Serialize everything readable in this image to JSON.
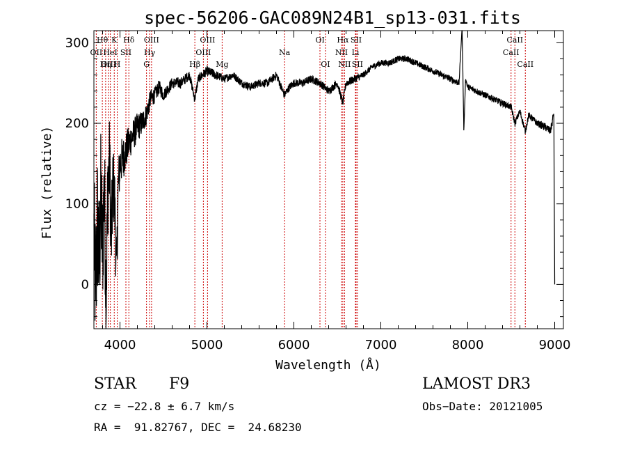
{
  "chart_data": {
    "type": "line",
    "title": "spec-56206-GAC089N24B1_sp13-031.fits",
    "xlabel": "Wavelength (Å)",
    "ylabel": "Flux (relative)",
    "xlim": [
      3700,
      9100
    ],
    "ylim": [
      -55,
      315
    ],
    "xticks": [
      4000,
      5000,
      6000,
      7000,
      8000,
      9000
    ],
    "yticks": [
      0,
      100,
      200,
      300
    ],
    "series": [
      {
        "name": "spectrum",
        "x": [
          3700,
          3720,
          3740,
          3760,
          3780,
          3800,
          3820,
          3840,
          3860,
          3880,
          3900,
          3920,
          3940,
          3960,
          3980,
          4000,
          4050,
          4100,
          4150,
          4200,
          4250,
          4300,
          4350,
          4400,
          4450,
          4500,
          4600,
          4700,
          4800,
          4860,
          4900,
          5000,
          5100,
          5200,
          5300,
          5400,
          5500,
          5600,
          5700,
          5800,
          5890,
          5950,
          6000,
          6100,
          6200,
          6300,
          6400,
          6500,
          6563,
          6600,
          6700,
          6800,
          6900,
          7000,
          7100,
          7200,
          7300,
          7400,
          7500,
          7600,
          7700,
          7800,
          7900,
          7935,
          7955,
          7975,
          8000,
          8100,
          8200,
          8300,
          8400,
          8500,
          8542,
          8600,
          8662,
          8700,
          8800,
          8900,
          8950,
          8970,
          8990,
          9000
        ],
        "y": [
          60,
          -10,
          80,
          20,
          110,
          40,
          130,
          -20,
          120,
          150,
          50,
          130,
          100,
          10,
          120,
          150,
          160,
          175,
          185,
          195,
          200,
          210,
          230,
          235,
          245,
          235,
          250,
          250,
          260,
          230,
          255,
          265,
          260,
          255,
          260,
          250,
          245,
          250,
          250,
          260,
          235,
          245,
          250,
          250,
          255,
          250,
          240,
          250,
          225,
          250,
          255,
          260,
          270,
          275,
          275,
          280,
          280,
          275,
          270,
          265,
          260,
          255,
          250,
          320,
          190,
          255,
          245,
          240,
          235,
          230,
          225,
          220,
          200,
          215,
          190,
          210,
          200,
          195,
          190,
          200,
          215,
          0
        ],
        "noise_amplitude": [
          90,
          90,
          90,
          90,
          85,
          80,
          75,
          70,
          65,
          60,
          55,
          50,
          45,
          40,
          35,
          30,
          25,
          22,
          20,
          18,
          16,
          14,
          12,
          10,
          9,
          8,
          7,
          7,
          6,
          6,
          6,
          6,
          6,
          5,
          5,
          5,
          5,
          5,
          5,
          5,
          5,
          5,
          5,
          5,
          5,
          5,
          5,
          5,
          5,
          5,
          5,
          4,
          4,
          4,
          4,
          4,
          4,
          4,
          4,
          4,
          4,
          4,
          4,
          0,
          0,
          0,
          4,
          4,
          4,
          4,
          4,
          4,
          4,
          4,
          4,
          4,
          4,
          5,
          5,
          5,
          5,
          0
        ]
      }
    ],
    "emission_lines": [
      {
        "label": "Hθ",
        "wave": 3797,
        "row": 0
      },
      {
        "label": "OII",
        "wave": 3727,
        "row": 1
      },
      {
        "label": "OIII",
        "wave": 3869,
        "row": 2
      },
      {
        "label": "K",
        "wave": 3934,
        "row": 0
      },
      {
        "label": "HeI",
        "wave": 3889,
        "row": 1
      },
      {
        "label": "Hη",
        "wave": 3835,
        "row": 2
      },
      {
        "label": "H",
        "wave": 3968,
        "row": 2
      },
      {
        "label": "Hδ",
        "wave": 4102,
        "row": 0
      },
      {
        "label": "SII",
        "wave": 4068,
        "row": 1
      },
      {
        "label": "OIII",
        "wave": 4363,
        "row": 0
      },
      {
        "label": "Hγ",
        "wave": 4341,
        "row": 1
      },
      {
        "label": "G",
        "wave": 4305,
        "row": 2
      },
      {
        "label": "Hβ",
        "wave": 4861,
        "row": 2
      },
      {
        "label": "OIII",
        "wave": 5007,
        "row": 0
      },
      {
        "label": "OIII",
        "wave": 4959,
        "row": 1
      },
      {
        "label": "Mg",
        "wave": 5175,
        "row": 2
      },
      {
        "label": "Na",
        "wave": 5893,
        "row": 1
      },
      {
        "label": "OI",
        "wave": 6300,
        "row": 0
      },
      {
        "label": "OI",
        "wave": 6363,
        "row": 2
      },
      {
        "label": "Hα",
        "wave": 6563,
        "row": 0
      },
      {
        "label": "NII",
        "wave": 6548,
        "row": 1
      },
      {
        "label": "NII",
        "wave": 6583,
        "row": 2
      },
      {
        "label": "SII",
        "wave": 6716,
        "row": 0
      },
      {
        "label": "Li",
        "wave": 6708,
        "row": 1
      },
      {
        "label": "SII",
        "wave": 6731,
        "row": 2
      },
      {
        "label": "CaII",
        "wave": 8542,
        "row": 0
      },
      {
        "label": "CaII",
        "wave": 8498,
        "row": 1
      },
      {
        "label": "CaII",
        "wave": 8662,
        "row": 2
      }
    ],
    "colors": {
      "spectrum": "#000000",
      "lines": "#cc0000",
      "axes": "#000000"
    }
  },
  "info": {
    "class": "STAR",
    "subclass": "F9",
    "survey": "LAMOST DR3",
    "cz": "cz = −22.8 ± 6.7 km/s",
    "obs_date": "Obs−Date: 20121005",
    "coords": "RA =  91.82767, DEC =  24.68230"
  }
}
